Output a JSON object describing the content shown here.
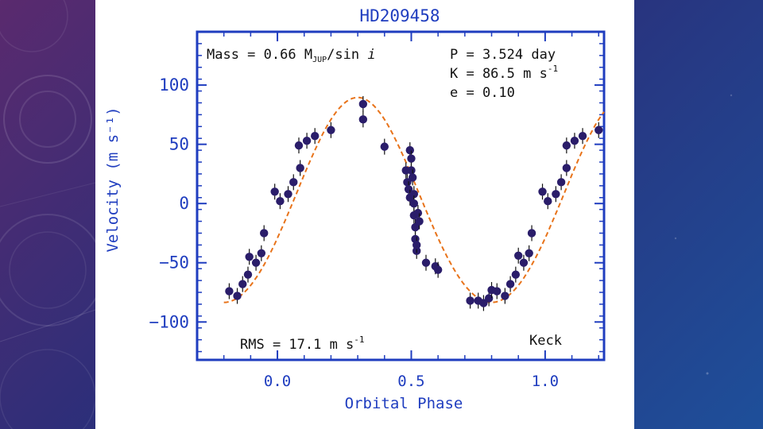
{
  "slide": {
    "colors": {
      "background_left": "#5a2a6e",
      "background_right": "#1e4f9a",
      "panel": "#ffffff"
    }
  },
  "chart_data": {
    "type": "scatter",
    "title": "HD209458",
    "xlabel": "Orbital Phase",
    "ylabel": "Velocity (m s⁻¹)",
    "xlim": [
      -0.3,
      1.22
    ],
    "ylim": [
      -132,
      145
    ],
    "xticks": [
      "0.0",
      "0.5",
      "1.0"
    ],
    "xtick_values": [
      0.0,
      0.5,
      1.0
    ],
    "yticks": [
      "100",
      "50",
      "0",
      "−50",
      "−100"
    ],
    "ytick_values": [
      100,
      50,
      0,
      -50,
      -100
    ],
    "annotations": {
      "mass": "Mass = 0.66 M",
      "mass_sub": "JUP",
      "mass_tail": "/sin ",
      "mass_i": "i",
      "period": "P = 3.524 day",
      "amplitude": "K = 86.5 m s",
      "amplitude_exp": "-1",
      "eccentricity": "e = 0.10",
      "rms": "RMS = 17.1 m s",
      "rms_exp": "-1",
      "telescope": "Keck"
    },
    "fit": {
      "K": 86.5,
      "e": 0.1,
      "phase_of_max": 0.3,
      "offset": 0
    },
    "colors": {
      "axes": "#1f3dbf",
      "points": "#2a1d6a",
      "fit_line": "#e8731a"
    },
    "series": [
      {
        "values": [
          [
            -0.18,
            -74
          ],
          [
            -0.15,
            -78
          ],
          [
            -0.13,
            -68
          ],
          [
            -0.11,
            -60
          ],
          [
            -0.105,
            -45
          ],
          [
            -0.08,
            -50
          ],
          [
            -0.06,
            -42
          ],
          [
            -0.05,
            -25
          ],
          [
            -0.01,
            10
          ],
          [
            0.01,
            2
          ],
          [
            0.04,
            8
          ],
          [
            0.06,
            18
          ],
          [
            0.08,
            49
          ],
          [
            0.085,
            30
          ],
          [
            0.11,
            53
          ],
          [
            0.14,
            57
          ],
          [
            0.2,
            62
          ],
          [
            0.32,
            84
          ],
          [
            0.32,
            71
          ],
          [
            0.4,
            48
          ],
          [
            0.48,
            28
          ],
          [
            0.485,
            18
          ],
          [
            0.49,
            12
          ],
          [
            0.495,
            5
          ],
          [
            0.495,
            45
          ],
          [
            0.5,
            38
          ],
          [
            0.5,
            28
          ],
          [
            0.505,
            22
          ],
          [
            0.51,
            8
          ],
          [
            0.51,
            0
          ],
          [
            0.51,
            -10
          ],
          [
            0.515,
            -20
          ],
          [
            0.515,
            -30
          ],
          [
            0.52,
            -40
          ],
          [
            0.52,
            -35
          ],
          [
            0.525,
            -8
          ],
          [
            0.53,
            -15
          ],
          [
            0.555,
            -50
          ],
          [
            0.59,
            -53
          ],
          [
            0.6,
            -56
          ],
          [
            0.72,
            -82
          ],
          [
            0.75,
            -82
          ],
          [
            0.77,
            -84
          ],
          [
            0.79,
            -80
          ],
          [
            0.8,
            -73
          ],
          [
            0.82,
            -74
          ],
          [
            0.85,
            -78
          ],
          [
            0.87,
            -68
          ],
          [
            0.89,
            -60
          ],
          [
            0.9,
            -44
          ],
          [
            0.92,
            -50
          ],
          [
            0.94,
            -42
          ],
          [
            0.95,
            -25
          ],
          [
            0.99,
            10
          ],
          [
            1.01,
            2
          ],
          [
            1.04,
            8
          ],
          [
            1.06,
            18
          ],
          [
            1.08,
            30
          ],
          [
            1.08,
            49
          ],
          [
            1.11,
            53
          ],
          [
            1.14,
            57
          ],
          [
            1.2,
            62
          ]
        ]
      }
    ]
  }
}
